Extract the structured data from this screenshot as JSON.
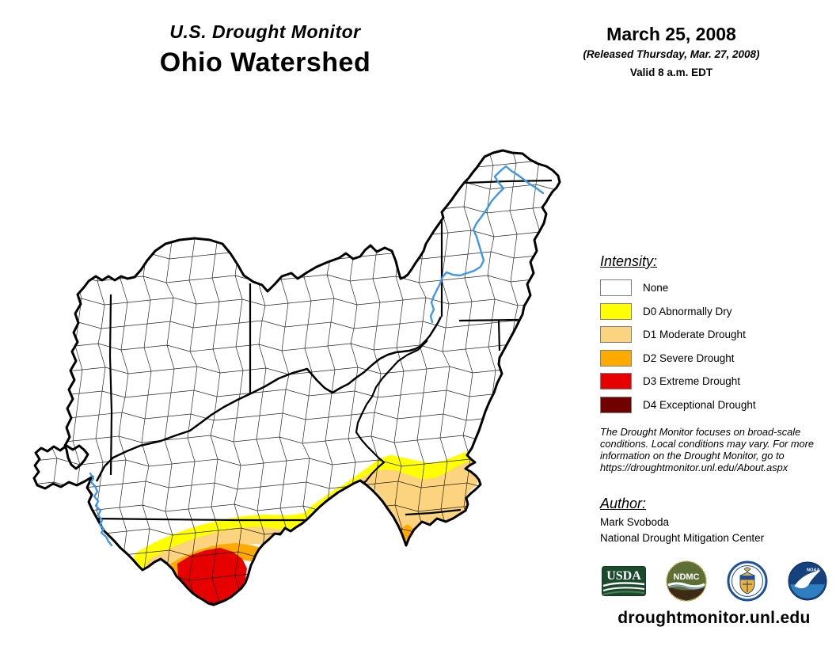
{
  "header": {
    "supertitle": "U.S. Drought Monitor",
    "title": "Ohio Watershed",
    "date": "March 25, 2008",
    "released": "(Released Thursday, Mar. 27, 2008)",
    "valid": "Valid 8 a.m. EDT"
  },
  "legend": {
    "heading": "Intensity:",
    "items": [
      {
        "label": "None",
        "color": "#FFFFFF"
      },
      {
        "label": "D0 Abnormally Dry",
        "color": "#FFFF00"
      },
      {
        "label": "D1 Moderate Drought",
        "color": "#FCD37F"
      },
      {
        "label": "D2 Severe Drought",
        "color": "#FFAA00"
      },
      {
        "label": "D3 Extreme Drought",
        "color": "#E60000"
      },
      {
        "label": "D4 Exceptional Drought",
        "color": "#730000"
      }
    ]
  },
  "disclaimer": {
    "lines": [
      "The Drought Monitor focuses on broad-scale",
      "conditions. Local conditions may vary. For more",
      "information on the Drought Monitor, go to",
      "https://droughtmonitor.unl.edu/About.aspx"
    ]
  },
  "author": {
    "heading": "Author:",
    "name": "Mark Svoboda",
    "org": "National Drought Mitigation Center"
  },
  "logos": {
    "usda": "USDA",
    "ndmc": "NDMC",
    "noaa": "NOAA"
  },
  "footer": {
    "url": "droughtmonitor.unl.edu"
  },
  "map": {
    "region": "Ohio Watershed",
    "river_color": "#3E97E8",
    "drought_colors": {
      "d0": "#FFFF00",
      "d1": "#FCD37F",
      "d2": "#FFAA00",
      "d3": "#E60000",
      "d4": "#730000"
    }
  }
}
